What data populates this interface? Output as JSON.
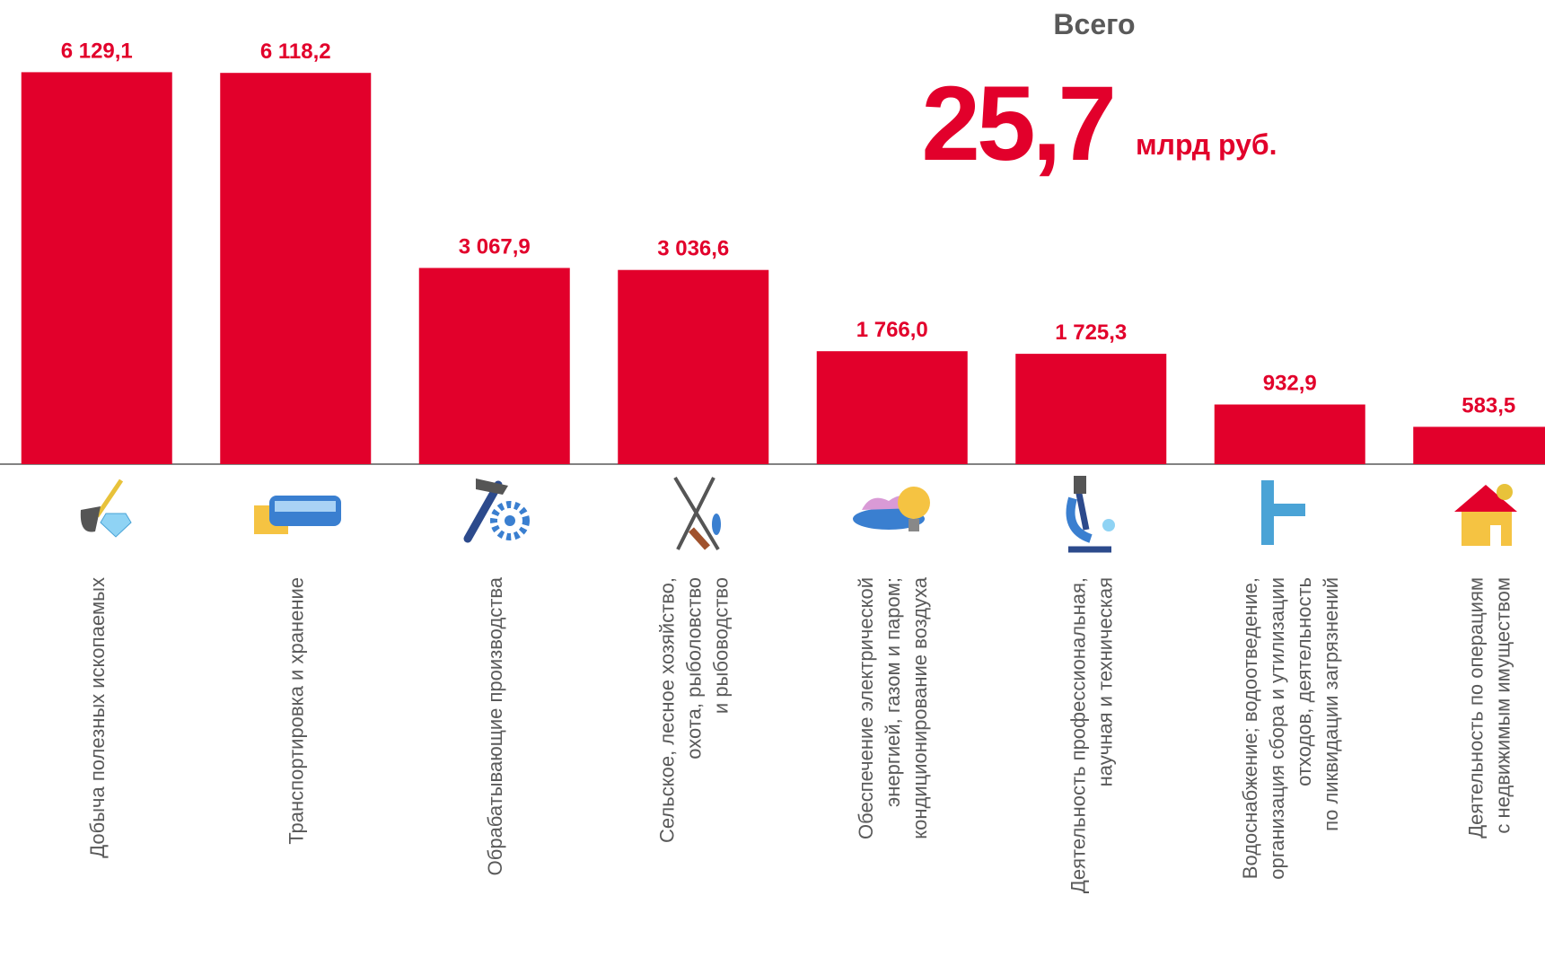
{
  "chart_data": {
    "type": "bar",
    "categories": [
      [
        "Добыча полезных ископаемых"
      ],
      [
        "Транспортировка и хранение"
      ],
      [
        "Обрабатывающие производства"
      ],
      [
        "Сельское, лесное хозяйство,",
        "охота, рыболовство",
        "и рыбоводство"
      ],
      [
        "Обеспечение электрической",
        "энергией, газом и паром;",
        "кондиционирование воздуха"
      ],
      [
        "Деятельность профессиональная,",
        "научная и техническая"
      ],
      [
        "Водоснабжение; водоотведение,",
        "организация сбора и утилизации",
        "отходов, деятельность",
        "по ликвидации загрязнений"
      ],
      [
        "Деятельность по операциям",
        "с недвижимым имуществом"
      ]
    ],
    "values": [
      6129.1,
      6118.2,
      3067.9,
      3036.6,
      1766.0,
      1725.3,
      932.9,
      583.5
    ],
    "value_labels": [
      "6 129,1",
      "6 118,2",
      "3 067,9",
      "3 036,6",
      "1 766,0",
      "1 725,3",
      "932,9",
      "583,5"
    ],
    "color": "#e2002b",
    "ylim": [
      0,
      6500
    ],
    "total": {
      "title": "Всего",
      "value": 25.7,
      "value_label": "25,7",
      "unit": "млрд руб."
    }
  }
}
